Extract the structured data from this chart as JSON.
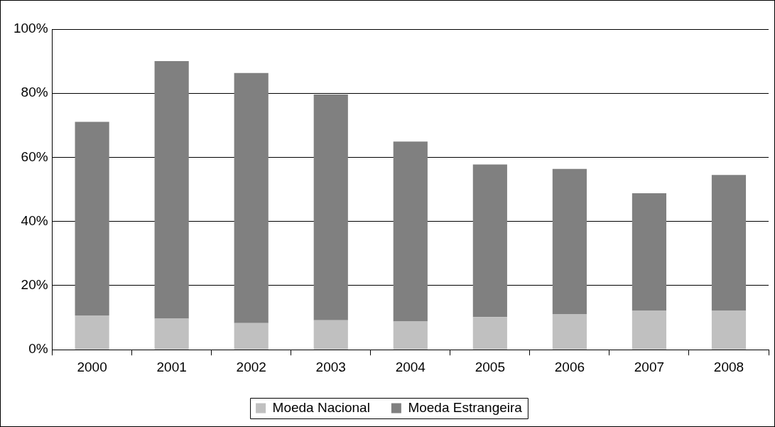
{
  "chart_data": {
    "type": "bar",
    "stacked": true,
    "categories": [
      "2000",
      "2001",
      "2002",
      "2003",
      "2004",
      "2005",
      "2006",
      "2007",
      "2008"
    ],
    "series": [
      {
        "name": "Moeda Nacional",
        "color": "#c0c0c0",
        "values": [
          10.7,
          9.7,
          8.3,
          9.2,
          8.8,
          10.2,
          11.1,
          12.1,
          12.1
        ]
      },
      {
        "name": "Moeda Estrangeira",
        "color": "#808080",
        "values": [
          60.4,
          80.3,
          78.0,
          70.4,
          56.1,
          47.6,
          45.3,
          36.7,
          42.4
        ]
      }
    ],
    "ylim": [
      0,
      100
    ],
    "yticks": [
      {
        "value": 0,
        "label": "0%"
      },
      {
        "value": 20,
        "label": "20%"
      },
      {
        "value": 40,
        "label": "40%"
      },
      {
        "value": 60,
        "label": "60%"
      },
      {
        "value": 80,
        "label": "80%"
      },
      {
        "value": 100,
        "label": "100%"
      }
    ],
    "grid": "y",
    "legend": "bottom"
  }
}
